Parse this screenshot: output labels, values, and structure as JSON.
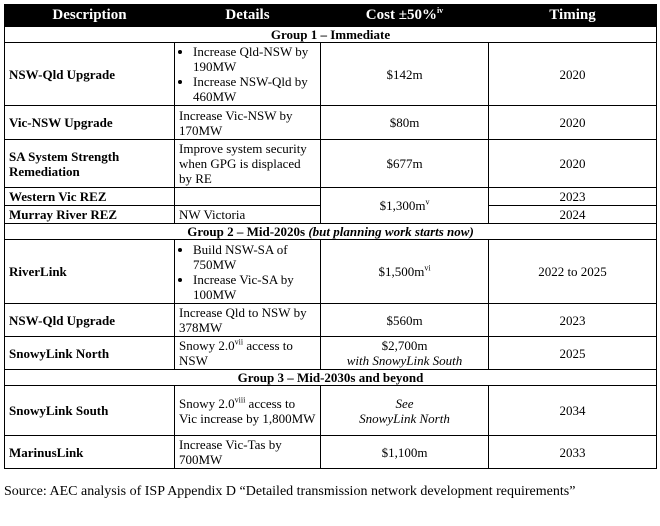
{
  "header": {
    "description": "Description",
    "details": "Details",
    "cost": "Cost ±50%",
    "cost_note": "iv",
    "timing": "Timing"
  },
  "groups": [
    {
      "title": "Group 1 – Immediate",
      "subtitle": "",
      "rows": [
        {
          "description": "NSW-Qld Upgrade",
          "details_items": [
            "Increase Qld-NSW by 190MW",
            "Increase NSW-Qld by 460MW"
          ],
          "cost": "$142m",
          "timing": "2020"
        },
        {
          "description": "Vic-NSW Upgrade",
          "details": "Increase Vic-NSW by 170MW",
          "cost": "$80m",
          "timing": "2020"
        },
        {
          "description": "SA System Strength Remediation",
          "details": "Improve system security when GPG is displaced by RE",
          "cost": "$677m",
          "timing": "2020"
        },
        {
          "description": "Western Vic REZ",
          "details": "",
          "cost": "$1,300m",
          "cost_note": "v",
          "timing": "2023"
        },
        {
          "description": "Murray River REZ",
          "details": "NW Victoria",
          "timing": "2024"
        }
      ]
    },
    {
      "title": "Group 2 – Mid-2020s",
      "subtitle": "(but planning work starts now)",
      "rows": [
        {
          "description": "RiverLink",
          "details_items": [
            "Build NSW-SA of 750MW",
            "Increase Vic-SA by 100MW"
          ],
          "cost": "$1,500m",
          "cost_note": "vi",
          "timing": "2022 to 2025"
        },
        {
          "description": "NSW-Qld Upgrade",
          "details": "Increase Qld to NSW by 378MW",
          "cost": "$560m",
          "timing": "2023"
        },
        {
          "description": "SnowyLink North",
          "details_pre": "Snowy 2.0",
          "details_note": "vii",
          "details_post": " access to NSW",
          "cost": "$2,700m",
          "cost_sub": "with SnowyLink South",
          "timing": "2025"
        }
      ]
    },
    {
      "title": "Group 3 – Mid-2030s and beyond",
      "subtitle": "",
      "rows": [
        {
          "description": "SnowyLink South",
          "details_pre": "Snowy 2.0",
          "details_note": "viii",
          "details_post": " access to Vic increase by 1,800MW",
          "cost_italic_1": "See",
          "cost_italic_2": "SnowyLink North",
          "timing": "2034"
        },
        {
          "description": "MarinusLink",
          "details": "Increase Vic-Tas by 700MW",
          "cost": "$1,100m",
          "timing": "2033"
        }
      ]
    }
  ],
  "source": "Source: AEC analysis of ISP Appendix D “Detailed transmission network development requirements”"
}
